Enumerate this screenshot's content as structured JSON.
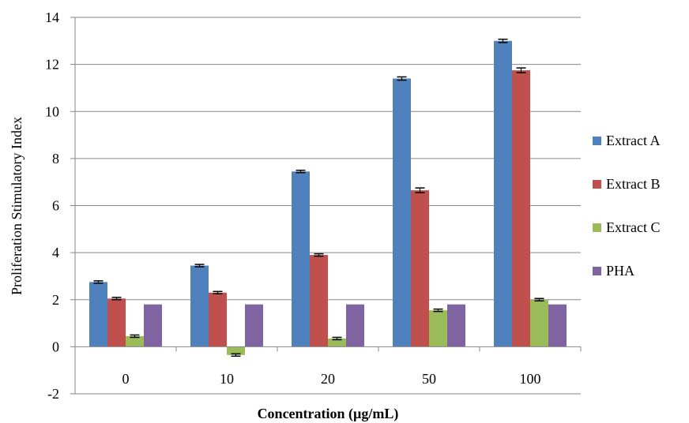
{
  "chart_data": {
    "type": "bar",
    "title": "",
    "xlabel": "Concentration (µg/mL)",
    "ylabel": "Proliferation Stimulatory Index",
    "ylim": [
      -2,
      14
    ],
    "yticks": [
      "-2",
      "0",
      "2",
      "4",
      "6",
      "8",
      "10",
      "12",
      "14"
    ],
    "grid": "horizontal",
    "legend_position": "right",
    "categories": [
      "0",
      "10",
      "20",
      "50",
      "100"
    ],
    "series": [
      {
        "name": "Extract A",
        "color": "#4F81BD",
        "values": [
          2.75,
          3.45,
          7.45,
          11.4,
          13.0
        ],
        "errors": [
          0.05,
          0.05,
          0.05,
          0.07,
          0.07
        ]
      },
      {
        "name": "Extract B",
        "color": "#C0504D",
        "values": [
          2.05,
          2.3,
          3.9,
          6.65,
          11.75
        ],
        "errors": [
          0.05,
          0.05,
          0.05,
          0.1,
          0.1
        ]
      },
      {
        "name": "Extract C",
        "color": "#9BBB59",
        "values": [
          0.45,
          -0.35,
          0.35,
          1.55,
          2.0
        ],
        "errors": [
          0.05,
          0.05,
          0.05,
          0.05,
          0.05
        ]
      },
      {
        "name": "PHA",
        "color": "#8064A2",
        "values": [
          1.8,
          1.8,
          1.8,
          1.8,
          1.8
        ],
        "errors": [
          0,
          0,
          0,
          0,
          0
        ]
      }
    ]
  }
}
